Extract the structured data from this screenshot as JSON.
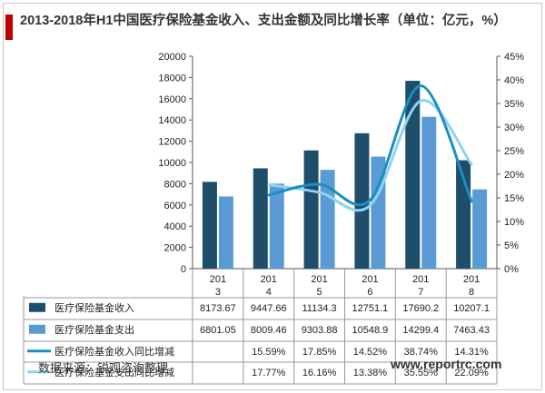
{
  "title": "2013-2018年H1中国医疗保险基金收入、支出金额及同比增长率（单位：亿元，%）",
  "source": "数据来源：锐观咨询整理",
  "site": "www.reportrc.com",
  "colors": {
    "income_bar": "#1f4e6b",
    "expense_bar": "#5b9bd5",
    "income_line": "#1a8fc2",
    "expense_line": "#8fd3f0",
    "accent": "#c00000"
  },
  "chart_data": {
    "type": "bar",
    "categories": [
      "2013",
      "2014",
      "2015",
      "2016",
      "2017",
      "2018"
    ],
    "category_labels": [
      [
        "201",
        "3"
      ],
      [
        "201",
        "4"
      ],
      [
        "201",
        "5"
      ],
      [
        "201",
        "6"
      ],
      [
        "201",
        "7"
      ],
      [
        "201",
        "8"
      ]
    ],
    "series": [
      {
        "name": "医疗保险基金收入",
        "type": "bar",
        "axis": "left",
        "values": [
          8173.67,
          9447.66,
          11134.3,
          12751.1,
          17690.2,
          10207.1
        ],
        "labels": [
          "8173.67",
          "9447.66",
          "11134.3",
          "12751.1",
          "17690.2",
          "10207.1"
        ]
      },
      {
        "name": "医疗保险基金支出",
        "type": "bar",
        "axis": "left",
        "values": [
          6801.05,
          8009.46,
          9303.88,
          10548.9,
          14299.4,
          7463.43
        ],
        "labels": [
          "6801.05",
          "8009.46",
          "9303.88",
          "10548.9",
          "14299.4",
          "7463.43"
        ]
      },
      {
        "name": "医疗保险基金收入同比增减",
        "type": "line",
        "axis": "right",
        "values": [
          null,
          15.59,
          17.85,
          14.52,
          38.74,
          14.31
        ],
        "labels": [
          "",
          "15.59%",
          "17.85%",
          "14.52%",
          "38.74%",
          "14.31%"
        ]
      },
      {
        "name": "医疗保险基金支出同比增减",
        "type": "line",
        "axis": "right",
        "values": [
          null,
          17.77,
          16.16,
          13.38,
          35.55,
          22.09
        ],
        "labels": [
          "",
          "17.77%",
          "16.16%",
          "13.38%",
          "35.55%",
          "22.09%"
        ]
      }
    ],
    "left_axis": {
      "min": 0,
      "max": 20000,
      "step": 2000,
      "ticks": [
        "0",
        "2000",
        "4000",
        "6000",
        "8000",
        "10000",
        "12000",
        "14000",
        "16000",
        "18000",
        "20000"
      ]
    },
    "right_axis": {
      "min": 0,
      "max": 45,
      "step": 5,
      "ticks": [
        "0%",
        "5%",
        "10%",
        "15%",
        "20%",
        "25%",
        "30%",
        "35%",
        "40%",
        "45%"
      ]
    },
    "grid": false,
    "legend": "data-table"
  }
}
